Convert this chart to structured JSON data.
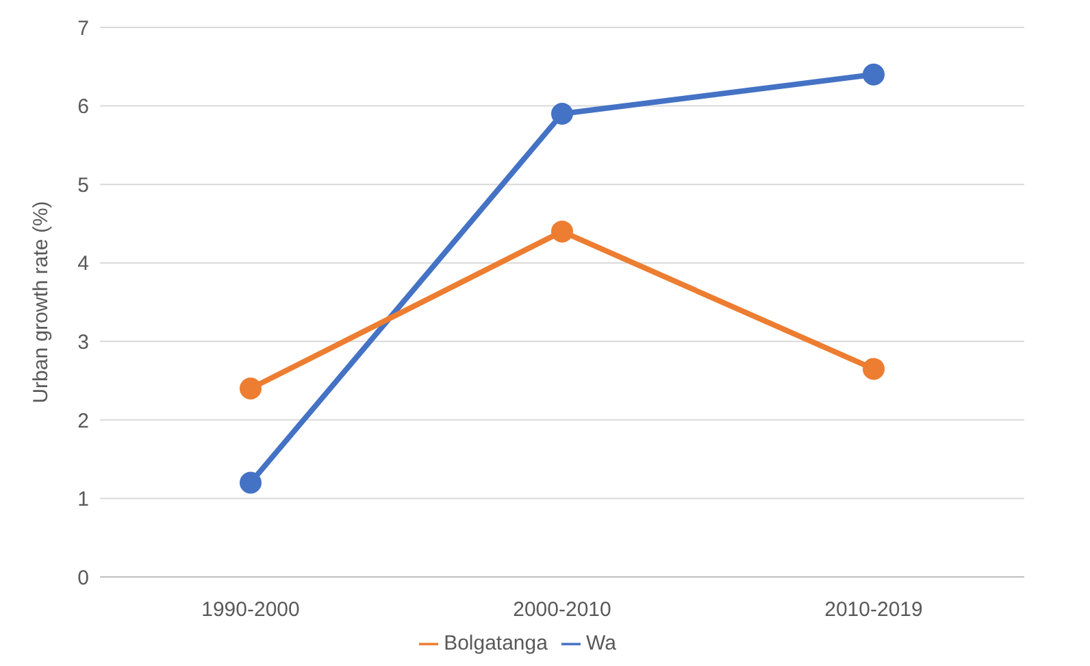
{
  "chart_data": {
    "type": "line",
    "ylabel": "Urban growth rate (%)",
    "categories": [
      "1990-2000",
      "2000-2010",
      "2010-2019"
    ],
    "series": [
      {
        "name": "Wa",
        "color": "#4472c4",
        "values": [
          1.2,
          5.9,
          6.4
        ]
      },
      {
        "name": "Bolgatanga",
        "color": "#ed7d31",
        "values": [
          2.4,
          4.4,
          2.65
        ]
      }
    ],
    "ylim": [
      0,
      7
    ],
    "yticks": [
      0,
      1,
      2,
      3,
      4,
      5,
      6,
      7
    ],
    "grid": "y",
    "legend": "bottom",
    "marker": "circle",
    "line_style": "solid"
  }
}
